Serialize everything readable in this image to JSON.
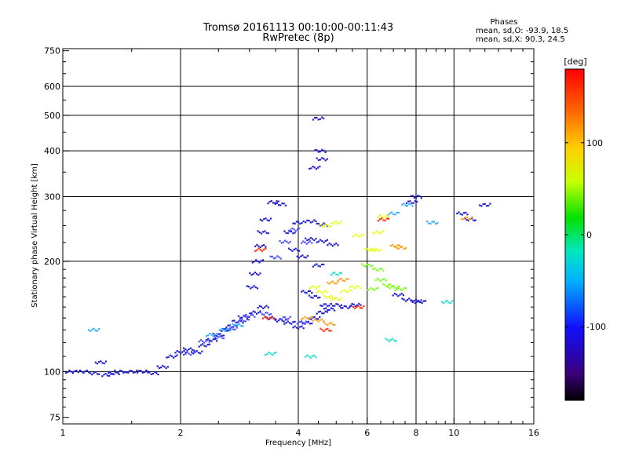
{
  "header": {
    "title_line1": "Tromsø 20161113 00:10:00-00:11:43",
    "title_line2": "RwPretec (8p)"
  },
  "stats": {
    "heading": "Phases",
    "line_o": "mean, sd,O: -93.9, 18.5",
    "line_x": "mean, sd,X:  90.3, 24.5"
  },
  "chart_data": {
    "type": "scatter",
    "title": "Tromsø 20161113 00:10:00-00:11:43",
    "subtitle": "RwPretec (8p)",
    "xlabel": "Frequency [MHz]",
    "ylabel": "Stationary phase Virtual Height [km]",
    "x_scale": "log",
    "y_scale": "log",
    "xlim": [
      1,
      16
    ],
    "ylim": [
      72,
      760
    ],
    "x_ticks": [
      1,
      2,
      4,
      6,
      8,
      10,
      16
    ],
    "x_tick_labels": [
      "1",
      "2",
      "4",
      "6",
      "8",
      "10",
      "16"
    ],
    "x_gridlines": [
      2,
      4,
      6,
      8,
      10
    ],
    "y_ticks": [
      75,
      100,
      200,
      300,
      400,
      500,
      600,
      750
    ],
    "y_tick_labels": [
      "75",
      "100",
      "200",
      "300",
      "400",
      "500",
      "600",
      "750"
    ],
    "y_gridlines": [
      100,
      200,
      300,
      400,
      500,
      600
    ],
    "grid": true,
    "colorbar": {
      "label": "[deg]",
      "range": [
        -180,
        180
      ],
      "ticks": [
        100,
        0,
        -100
      ],
      "tick_labels": [
        "100",
        "0",
        "-100"
      ]
    },
    "series": [
      {
        "color": "#2020d0",
        "phase": -100,
        "points": [
          [
            1.05,
            100
          ],
          [
            1.13,
            100
          ],
          [
            1.2,
            99
          ],
          [
            1.25,
            106
          ],
          [
            1.3,
            98
          ],
          [
            1.35,
            99
          ],
          [
            1.4,
            100
          ],
          [
            1.5,
            100
          ],
          [
            1.6,
            100
          ],
          [
            1.7,
            99
          ],
          [
            1.8,
            103
          ],
          [
            1.9,
            110
          ],
          [
            2.0,
            113
          ],
          [
            2.1,
            115
          ],
          [
            2.2,
            113
          ],
          [
            2.3,
            118
          ],
          [
            2.4,
            122
          ],
          [
            2.5,
            126
          ],
          [
            2.6,
            130
          ],
          [
            2.7,
            133
          ],
          [
            2.8,
            137
          ],
          [
            2.9,
            141
          ],
          [
            3.1,
            145
          ],
          [
            3.25,
            150
          ],
          [
            3.4,
            140
          ],
          [
            3.6,
            138
          ],
          [
            3.8,
            136
          ],
          [
            4.0,
            132
          ],
          [
            4.2,
            136
          ],
          [
            4.4,
            140
          ],
          [
            4.6,
            145
          ],
          [
            4.8,
            148
          ],
          [
            5.0,
            152
          ],
          [
            5.3,
            150
          ],
          [
            5.6,
            152
          ],
          [
            3.05,
            170
          ],
          [
            3.1,
            185
          ],
          [
            3.15,
            200
          ],
          [
            3.2,
            220
          ],
          [
            3.25,
            240
          ],
          [
            3.3,
            260
          ],
          [
            3.45,
            290
          ],
          [
            3.6,
            286
          ],
          [
            3.8,
            240
          ],
          [
            4.0,
            255
          ],
          [
            4.3,
            257
          ],
          [
            4.6,
            252
          ],
          [
            4.3,
            230
          ],
          [
            4.6,
            227
          ],
          [
            4.9,
            222
          ],
          [
            3.9,
            215
          ],
          [
            4.1,
            206
          ],
          [
            4.5,
            195
          ],
          [
            4.2,
            165
          ],
          [
            4.4,
            160
          ],
          [
            4.7,
            152
          ],
          [
            4.5,
            490
          ],
          [
            4.55,
            400
          ],
          [
            4.6,
            380
          ],
          [
            4.4,
            360
          ],
          [
            7.2,
            162
          ],
          [
            7.6,
            157
          ],
          [
            8.0,
            156
          ],
          [
            8.2,
            155
          ],
          [
            10.5,
            270
          ],
          [
            11.0,
            260
          ],
          [
            12.0,
            285
          ],
          [
            7.8,
            290
          ],
          [
            8.0,
            300
          ]
        ]
      },
      {
        "color": "#5050ff",
        "phase": -60,
        "points": [
          [
            2.1,
            112
          ],
          [
            2.3,
            121
          ],
          [
            2.5,
            124
          ],
          [
            2.7,
            131
          ],
          [
            2.9,
            138
          ],
          [
            3.0,
            142
          ],
          [
            3.3,
            144
          ],
          [
            3.7,
            140
          ],
          [
            4.1,
            136
          ],
          [
            3.5,
            205
          ],
          [
            3.7,
            226
          ],
          [
            3.9,
            244
          ],
          [
            4.2,
            225
          ]
        ]
      },
      {
        "color": "#30b0ff",
        "phase": -30,
        "points": [
          [
            2.4,
            126
          ],
          [
            2.6,
            130
          ],
          [
            2.8,
            134
          ],
          [
            1.2,
            130
          ],
          [
            7.0,
            270
          ],
          [
            7.6,
            285
          ],
          [
            8.8,
            255
          ]
        ]
      },
      {
        "color": "#20e0d0",
        "phase": 20,
        "points": [
          [
            3.4,
            112
          ],
          [
            4.3,
            110
          ],
          [
            6.9,
            122
          ],
          [
            9.6,
            155
          ],
          [
            5.0,
            185
          ]
        ]
      },
      {
        "color": "#80ff20",
        "phase": 60,
        "points": [
          [
            6.2,
            168
          ],
          [
            6.5,
            178
          ],
          [
            6.8,
            172
          ],
          [
            7.0,
            170
          ],
          [
            7.3,
            168
          ],
          [
            6.4,
            190
          ],
          [
            6.0,
            195
          ]
        ]
      },
      {
        "color": "#e8ff20",
        "phase": 100,
        "points": [
          [
            4.4,
            170
          ],
          [
            4.6,
            165
          ],
          [
            4.8,
            160
          ],
          [
            5.0,
            158
          ],
          [
            5.3,
            166
          ],
          [
            5.6,
            170
          ],
          [
            4.7,
            250
          ],
          [
            5.0,
            255
          ],
          [
            5.7,
            235
          ],
          [
            6.1,
            215
          ],
          [
            6.3,
            215
          ],
          [
            6.4,
            240
          ],
          [
            6.6,
            265
          ]
        ]
      },
      {
        "color": "#ffa020",
        "phase": 140,
        "points": [
          [
            4.2,
            140
          ],
          [
            4.5,
            138
          ],
          [
            4.8,
            135
          ],
          [
            4.9,
            175
          ],
          [
            5.2,
            178
          ],
          [
            7.1,
            220
          ],
          [
            7.3,
            218
          ],
          [
            10.8,
            262
          ]
        ]
      },
      {
        "color": "#ff3010",
        "phase": 170,
        "points": [
          [
            3.2,
            215
          ],
          [
            3.35,
            140
          ],
          [
            4.7,
            130
          ],
          [
            5.7,
            150
          ],
          [
            6.6,
            260
          ]
        ]
      }
    ]
  }
}
